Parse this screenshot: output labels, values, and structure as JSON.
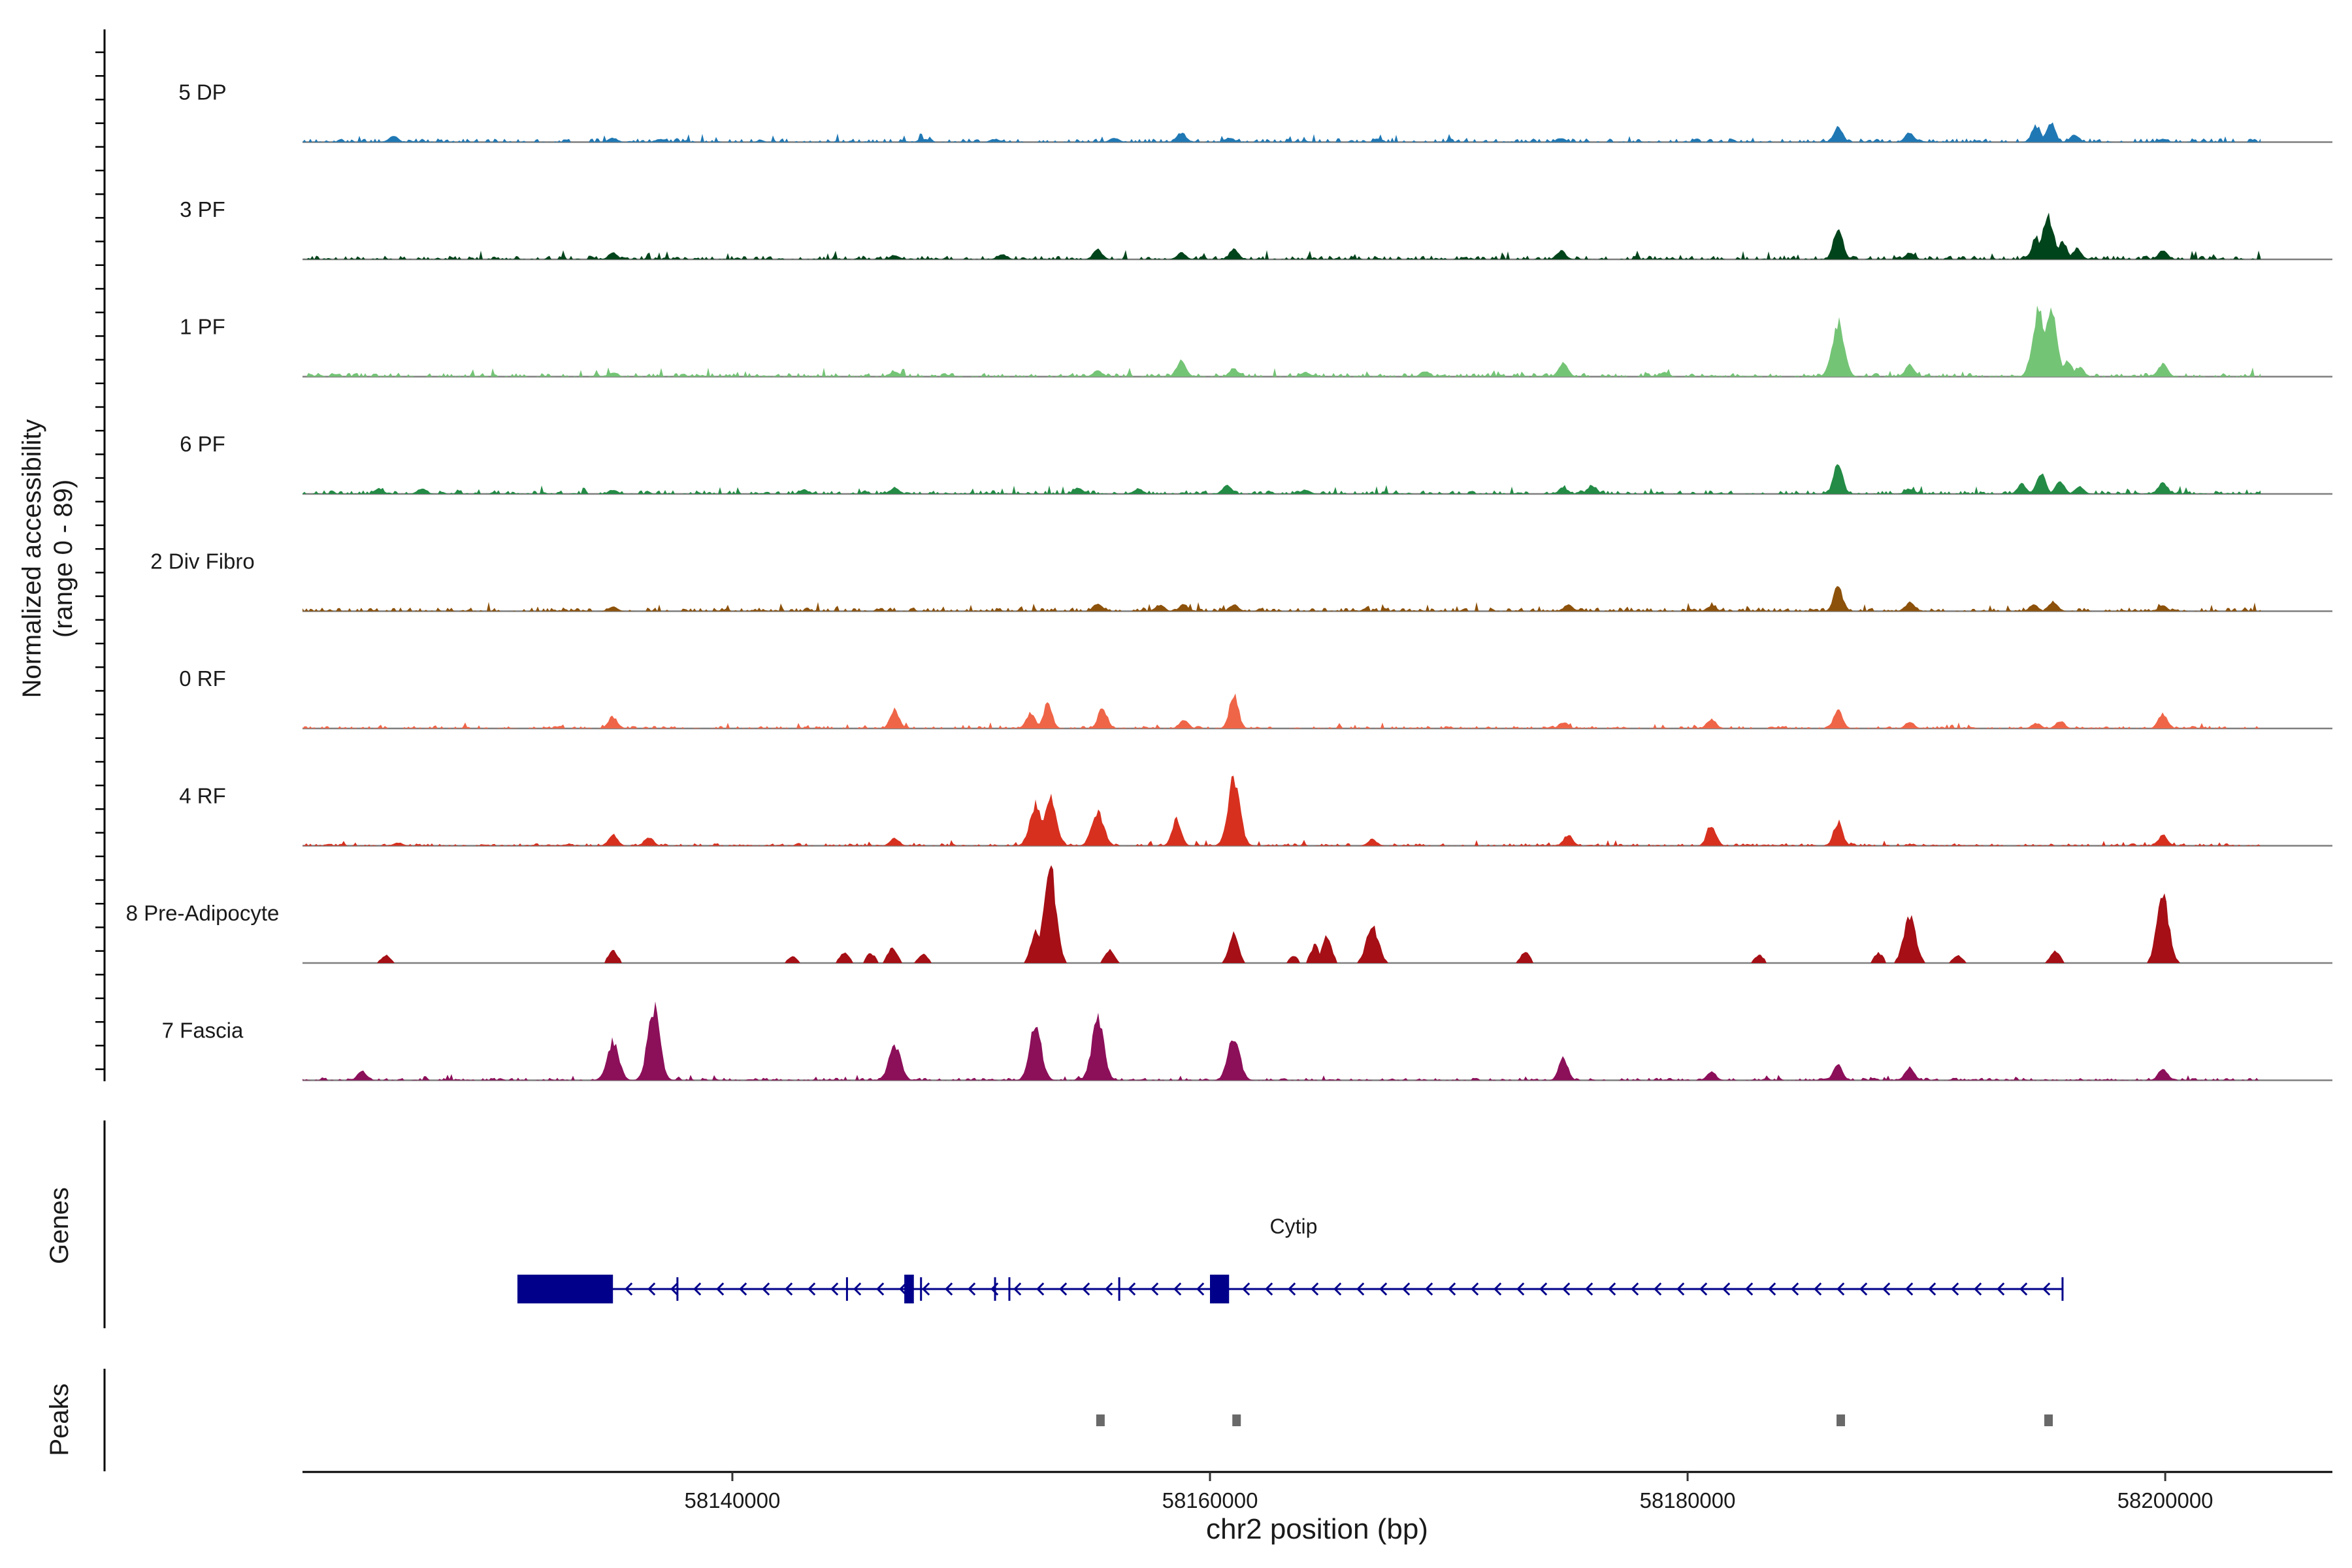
{
  "chart_data": {
    "type": "area",
    "ylabel_line1": "Normalized accessibility",
    "ylabel_line2": "(range 0 - 89)",
    "ylim": [
      0,
      89
    ],
    "xlabel": "chr2 position (bp)",
    "xlim": [
      58122000,
      58207000
    ],
    "x_ticks": [
      58140000,
      58160000,
      58180000,
      58200000
    ],
    "x_tick_labels": [
      "58140000",
      "58160000",
      "58180000",
      "58200000"
    ],
    "track_range": [
      58122000,
      58204000
    ],
    "series": [
      {
        "name": "5 DP",
        "color": "#1f78b4",
        "baseline": 3,
        "peaks": [
          [
            58125800,
            6
          ],
          [
            58135000,
            4
          ],
          [
            58137000,
            3
          ],
          [
            58148000,
            3
          ],
          [
            58151000,
            3
          ],
          [
            58156000,
            4
          ],
          [
            58158800,
            9
          ],
          [
            58160800,
            4
          ],
          [
            58174700,
            4
          ],
          [
            58186300,
            14
          ],
          [
            58189300,
            9
          ],
          [
            58194600,
            15
          ],
          [
            58195200,
            18
          ],
          [
            58196200,
            7
          ],
          [
            58199900,
            3
          ]
        ]
      },
      {
        "name": "3 PF",
        "color": "#00441b",
        "baseline": 3,
        "peaks": [
          [
            58135000,
            6
          ],
          [
            58146800,
            4
          ],
          [
            58151300,
            5
          ],
          [
            58155300,
            9
          ],
          [
            58158800,
            6
          ],
          [
            58161000,
            9
          ],
          [
            58174700,
            8
          ],
          [
            58186300,
            30
          ],
          [
            58189300,
            6
          ],
          [
            58194600,
            20
          ],
          [
            58195100,
            39
          ],
          [
            58195700,
            16
          ],
          [
            58196300,
            10
          ],
          [
            58199900,
            8
          ]
        ]
      },
      {
        "name": "1 PF",
        "color": "#74c476",
        "baseline": 3,
        "peaks": [
          [
            58135000,
            4
          ],
          [
            58146800,
            5
          ],
          [
            58155300,
            6
          ],
          [
            58158800,
            16
          ],
          [
            58161000,
            7
          ],
          [
            58164000,
            4
          ],
          [
            58169000,
            5
          ],
          [
            58174800,
            14
          ],
          [
            58179000,
            4
          ],
          [
            58186300,
            49
          ],
          [
            58189300,
            11
          ],
          [
            58194700,
            62
          ],
          [
            58195200,
            63
          ],
          [
            58195900,
            15
          ],
          [
            58196400,
            9
          ],
          [
            58199900,
            12
          ]
        ]
      },
      {
        "name": "6 PF",
        "color": "#238b45",
        "baseline": 3,
        "peaks": [
          [
            58125200,
            5
          ],
          [
            58127000,
            5
          ],
          [
            58135000,
            4
          ],
          [
            58143000,
            4
          ],
          [
            58146800,
            6
          ],
          [
            58154500,
            6
          ],
          [
            58157000,
            5
          ],
          [
            58160700,
            8
          ],
          [
            58164000,
            4
          ],
          [
            58174800,
            6
          ],
          [
            58176000,
            8
          ],
          [
            58186300,
            27
          ],
          [
            58189300,
            5
          ],
          [
            58194000,
            9
          ],
          [
            58194800,
            19
          ],
          [
            58195600,
            11
          ],
          [
            58196400,
            7
          ],
          [
            58199900,
            11
          ]
        ]
      },
      {
        "name": "2 Div Fibro",
        "color": "#8c510a",
        "baseline": 3,
        "peaks": [
          [
            58135000,
            4
          ],
          [
            58155300,
            7
          ],
          [
            58157900,
            6
          ],
          [
            58158900,
            6
          ],
          [
            58161000,
            6
          ],
          [
            58175000,
            6
          ],
          [
            58181000,
            5
          ],
          [
            58186300,
            22
          ],
          [
            58189300,
            8
          ],
          [
            58195300,
            9
          ],
          [
            58194500,
            6
          ],
          [
            58199900,
            5
          ]
        ]
      },
      {
        "name": "0 RF",
        "color": "#ef6548",
        "baseline": 2,
        "peaks": [
          [
            58135000,
            11
          ],
          [
            58146800,
            17
          ],
          [
            58152500,
            14
          ],
          [
            58153200,
            22
          ],
          [
            58155500,
            19
          ],
          [
            58158900,
            8
          ],
          [
            58161000,
            30
          ],
          [
            58174800,
            6
          ],
          [
            58181000,
            9
          ],
          [
            58186300,
            16
          ],
          [
            58189300,
            6
          ],
          [
            58194600,
            5
          ],
          [
            58195600,
            7
          ],
          [
            58199900,
            14
          ]
        ]
      },
      {
        "name": "4 RF",
        "color": "#d7301f",
        "baseline": 2,
        "peaks": [
          [
            58126000,
            3
          ],
          [
            58135000,
            10
          ],
          [
            58136500,
            8
          ],
          [
            58146800,
            7
          ],
          [
            58152700,
            38
          ],
          [
            58153300,
            47
          ],
          [
            58155300,
            32
          ],
          [
            58158600,
            25
          ],
          [
            58161000,
            62
          ],
          [
            58166800,
            6
          ],
          [
            58175000,
            10
          ],
          [
            58181000,
            20
          ],
          [
            58186300,
            22
          ],
          [
            58199900,
            10
          ]
        ]
      },
      {
        "name": "8 Pre-Adipocyte",
        "color": "#a50f15",
        "baseline": 0,
        "peaks": [
          [
            58125500,
            7
          ],
          [
            58135000,
            12
          ],
          [
            58142500,
            6
          ],
          [
            58144700,
            10
          ],
          [
            58145800,
            9
          ],
          [
            58146700,
            15
          ],
          [
            58148000,
            8
          ],
          [
            58152700,
            30
          ],
          [
            58153300,
            89
          ],
          [
            58155800,
            12
          ],
          [
            58161000,
            28
          ],
          [
            58163500,
            6
          ],
          [
            58164400,
            16
          ],
          [
            58164900,
            25
          ],
          [
            58166800,
            35
          ],
          [
            58173200,
            10
          ],
          [
            58183000,
            7
          ],
          [
            58188000,
            9
          ],
          [
            58189300,
            41
          ],
          [
            58191300,
            7
          ],
          [
            58195400,
            11
          ],
          [
            58199900,
            60
          ]
        ]
      },
      {
        "name": "7 Fascia",
        "color": "#8c0f5a",
        "baseline": 2,
        "peaks": [
          [
            58124500,
            9
          ],
          [
            58135000,
            35
          ],
          [
            58136700,
            67
          ],
          [
            58146800,
            32
          ],
          [
            58152700,
            49
          ],
          [
            58155300,
            56
          ],
          [
            58161000,
            39
          ],
          [
            58174800,
            20
          ],
          [
            58181000,
            8
          ],
          [
            58186300,
            14
          ],
          [
            58189300,
            12
          ],
          [
            58199900,
            11
          ]
        ]
      }
    ],
    "genes": {
      "label": "Genes",
      "name": "Cytip",
      "color": "#00008b",
      "start": 58131000,
      "end": 58195700,
      "exons": [
        [
          58131000,
          58135000
        ],
        [
          58147200,
          58147600
        ],
        [
          58160000,
          58160800
        ]
      ],
      "introns_marks": [
        58137700,
        58144800,
        58147900,
        58151000,
        58151600,
        58156200
      ]
    },
    "peaks_track": {
      "label": "Peaks",
      "color": "#696969",
      "regions": [
        58155400,
        58161100,
        58186400,
        58195100
      ]
    }
  }
}
